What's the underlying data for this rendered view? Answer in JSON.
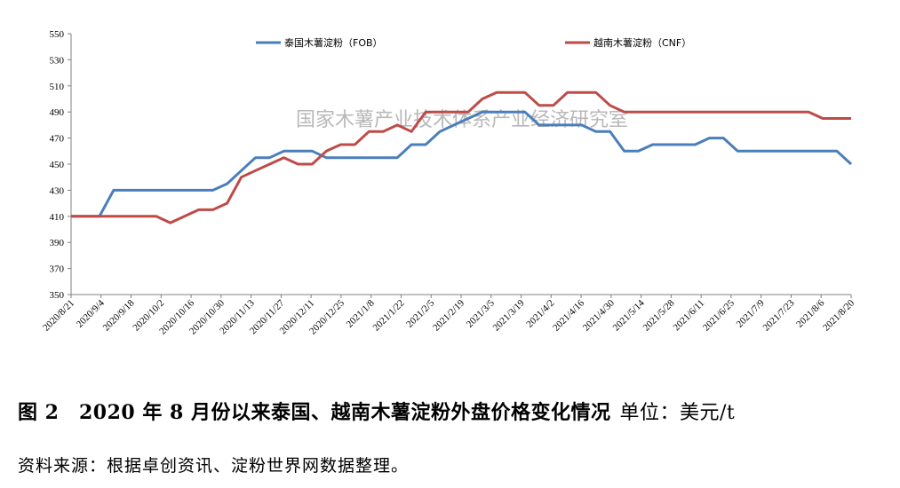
{
  "chart_data": {
    "type": "line",
    "watermark": "国家木薯产业技术体系产业经济研究室",
    "ylim": [
      350,
      550
    ],
    "yticks": [
      350,
      370,
      390,
      410,
      430,
      450,
      470,
      490,
      510,
      530,
      550
    ],
    "xtick_labels": [
      "2020/8/21",
      "2020/9/4",
      "2020/9/18",
      "2020/10/2",
      "2020/10/16",
      "2020/10/30",
      "2020/11/13",
      "2020/11/27",
      "2020/12/11",
      "2020/12/25",
      "2021/1/8",
      "2021/1/22",
      "2021/2/5",
      "2021/2/19",
      "2021/3/5",
      "2021/3/19",
      "2021/4/2",
      "2021/4/16",
      "2021/4/30",
      "2021/5/14",
      "2021/5/28",
      "2021/6/11",
      "2021/6/25",
      "2021/7/9",
      "2021/7/23",
      "2021/8/6",
      "2021/8/20"
    ],
    "legend_position": "top",
    "series": [
      {
        "name": "泰国木薯淀粉（FOB）",
        "color": "#4a7ebb",
        "values": [
          410,
          410,
          410,
          430,
          430,
          430,
          430,
          430,
          430,
          430,
          430,
          435,
          445,
          455,
          455,
          460,
          460,
          460,
          455,
          455,
          455,
          455,
          455,
          455,
          465,
          465,
          475,
          480,
          485,
          490,
          490,
          490,
          490,
          480,
          480,
          480,
          480,
          475,
          475,
          460,
          460,
          465,
          465,
          465,
          465,
          470,
          470,
          460,
          460,
          460,
          460,
          460,
          460,
          460,
          460,
          450
        ]
      },
      {
        "name": "越南木薯淀粉（CNF）",
        "color": "#be4b48",
        "values": [
          410,
          410,
          410,
          410,
          410,
          410,
          410,
          405,
          410,
          415,
          415,
          420,
          440,
          445,
          450,
          455,
          450,
          450,
          460,
          465,
          465,
          475,
          475,
          480,
          475,
          490,
          490,
          490,
          490,
          500,
          505,
          505,
          505,
          495,
          495,
          505,
          505,
          505,
          495,
          490,
          490,
          490,
          490,
          490,
          490,
          490,
          490,
          490,
          490,
          490,
          490,
          490,
          490,
          485,
          485,
          485
        ]
      }
    ]
  },
  "caption": {
    "title": "图 2　2020 年 8 月份以来泰国、越南木薯淀粉外盘价格变化情况",
    "unit": "单位：美元/t"
  },
  "source": "资料来源：根据卓创资讯、淀粉世界网数据整理。"
}
